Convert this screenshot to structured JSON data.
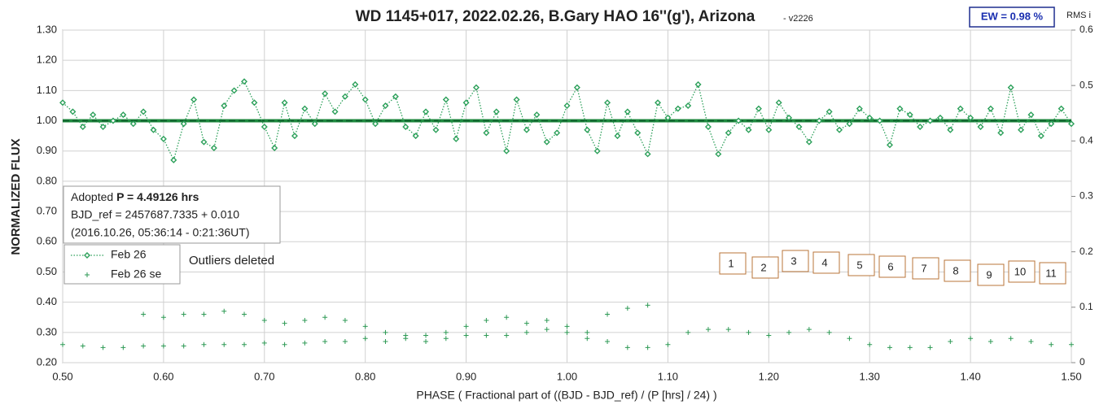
{
  "chart_data": {
    "type": "scatter",
    "title": "WD 1145+017, 2022.02.26, B.Gary HAO 16''(g'), Arizona",
    "subtitle": "- v2226",
    "x_label": "PHASE ( Fractional part of ((BJD - BJD_ref) / (P [hrs] / 24) )",
    "y_label": "NORMALIZED FLUX",
    "y2_label": "RMS i",
    "ew_label": "EW = 0.98 %",
    "info": {
      "prefix": "Adopted ",
      "period": "P = 4.49126 hrs",
      "line2": "BJD_ref = 2457687.7335 + 0.010",
      "line3": "(2016.10.26, 05:36:14 - 0:21:36UT)"
    },
    "note": "Outliers deleted",
    "markers": [
      "1",
      "2",
      "3",
      "4",
      "5",
      "6",
      "7",
      "8",
      "9",
      "10",
      "11"
    ],
    "reference_line": 1.0,
    "xlim": [
      0.5,
      1.5
    ],
    "ylim": [
      0.2,
      1.3
    ],
    "y2lim": [
      0,
      0.6
    ],
    "grid": true,
    "xticks": [
      {
        "value": 0.5,
        "label": "0.50"
      },
      {
        "value": 0.6,
        "label": "0.60"
      },
      {
        "value": 0.7,
        "label": "0.70"
      },
      {
        "value": 0.8,
        "label": "0.80"
      },
      {
        "value": 0.9,
        "label": "0.90"
      },
      {
        "value": 1.0,
        "label": "1.00"
      },
      {
        "value": 1.1,
        "label": "1.10"
      },
      {
        "value": 1.2,
        "label": "1.20"
      },
      {
        "value": 1.3,
        "label": "1.30"
      },
      {
        "value": 1.4,
        "label": "1.40"
      },
      {
        "value": 1.5,
        "label": "1.50"
      }
    ],
    "yticks": [
      {
        "value": 0.2,
        "label": "0.20"
      },
      {
        "value": 0.3,
        "label": "0.30"
      },
      {
        "value": 0.4,
        "label": "0.40"
      },
      {
        "value": 0.5,
        "label": "0.50"
      },
      {
        "value": 0.6,
        "label": "0.60"
      },
      {
        "value": 0.7,
        "label": "0.70"
      },
      {
        "value": 0.8,
        "label": "0.80"
      },
      {
        "value": 0.9,
        "label": "0.90"
      },
      {
        "value": 1.0,
        "label": "1.00"
      },
      {
        "value": 1.1,
        "label": "1.10"
      },
      {
        "value": 1.2,
        "label": "1.20"
      },
      {
        "value": 1.3,
        "label": "1.30"
      }
    ],
    "y2ticks": [
      0,
      0.1,
      0.2,
      0.3,
      0.4,
      0.5,
      0.6
    ],
    "series": [
      {
        "name": "Feb 26",
        "color": "#2ca05a",
        "x": [
          0.5,
          0.51,
          0.52,
          0.53,
          0.54,
          0.55,
          0.56,
          0.57,
          0.58,
          0.59,
          0.6,
          0.61,
          0.62,
          0.63,
          0.64,
          0.65,
          0.66,
          0.67,
          0.68,
          0.69,
          0.7,
          0.71,
          0.72,
          0.73,
          0.74,
          0.75,
          0.76,
          0.77,
          0.78,
          0.79,
          0.8,
          0.81,
          0.82,
          0.83,
          0.84,
          0.85,
          0.86,
          0.87,
          0.88,
          0.89,
          0.9,
          0.91,
          0.92,
          0.93,
          0.94,
          0.95,
          0.96,
          0.97,
          0.98,
          0.99,
          1.0,
          1.01,
          1.02,
          1.03,
          1.04,
          1.05,
          1.06,
          1.07,
          1.08,
          1.09,
          1.1,
          1.11,
          1.12,
          1.13,
          1.14,
          1.15,
          1.16,
          1.17,
          1.18,
          1.19,
          1.2,
          1.21,
          1.22,
          1.23,
          1.24,
          1.25,
          1.26,
          1.27,
          1.28,
          1.29,
          1.3,
          1.31,
          1.32,
          1.33,
          1.34,
          1.35,
          1.36,
          1.37,
          1.38,
          1.39,
          1.4,
          1.41,
          1.42,
          1.43,
          1.44,
          1.45,
          1.46,
          1.47,
          1.48,
          1.49,
          1.5
        ],
        "values": [
          1.06,
          1.03,
          0.98,
          1.02,
          0.98,
          1.0,
          1.02,
          0.99,
          1.03,
          0.97,
          0.94,
          0.87,
          0.99,
          1.07,
          0.93,
          0.91,
          1.05,
          1.1,
          1.13,
          1.06,
          0.98,
          0.91,
          1.06,
          0.95,
          1.04,
          0.99,
          1.09,
          1.03,
          1.08,
          1.12,
          1.07,
          0.99,
          1.05,
          1.08,
          0.98,
          0.95,
          1.03,
          0.97,
          1.07,
          0.94,
          1.06,
          1.11,
          0.96,
          1.03,
          0.9,
          1.07,
          0.97,
          1.02,
          0.93,
          0.96,
          1.05,
          1.11,
          0.97,
          0.9,
          1.06,
          0.95,
          1.03,
          0.96,
          0.89,
          1.06,
          1.01,
          1.04,
          1.05,
          1.12,
          0.98,
          0.89,
          0.96,
          1.0,
          0.97,
          1.04,
          0.97,
          1.06,
          1.01,
          0.98,
          0.93,
          1.0,
          1.03,
          0.97,
          0.99,
          1.04,
          1.01,
          1.0,
          0.92,
          1.04,
          1.02,
          0.98,
          1.0,
          1.01,
          0.97,
          1.04,
          1.01,
          0.98,
          1.04,
          0.96,
          1.11,
          0.97,
          1.02,
          0.95,
          0.99,
          1.04,
          0.99
        ]
      },
      {
        "name": "Feb 26 se",
        "color": "#2e9a55",
        "x": [
          0.5,
          0.52,
          0.54,
          0.56,
          0.58,
          0.6,
          0.62,
          0.64,
          0.66,
          0.68,
          0.7,
          0.72,
          0.74,
          0.76,
          0.78,
          0.8,
          0.82,
          0.84,
          0.86,
          0.88,
          0.9,
          0.92,
          0.94,
          0.96,
          0.98,
          1.0,
          1.02,
          1.04,
          1.06,
          1.08,
          1.1,
          1.12,
          1.14,
          1.16,
          1.18,
          1.2,
          1.22,
          1.24,
          1.26,
          1.28,
          1.3,
          1.32,
          1.34,
          1.36,
          1.38,
          1.4,
          1.42,
          1.44,
          1.46,
          1.48,
          1.5,
          0.58,
          0.6,
          0.62,
          0.64,
          0.66,
          0.68,
          0.7,
          0.72,
          0.74,
          0.76,
          0.78,
          0.8,
          0.82,
          0.84,
          0.86,
          0.88,
          0.9,
          0.92,
          0.94,
          0.96,
          0.98,
          1.0,
          1.02,
          1.04,
          1.06,
          1.08
        ],
        "values": [
          0.26,
          0.255,
          0.25,
          0.25,
          0.255,
          0.255,
          0.255,
          0.26,
          0.26,
          0.26,
          0.265,
          0.26,
          0.265,
          0.27,
          0.27,
          0.28,
          0.27,
          0.28,
          0.27,
          0.28,
          0.29,
          0.29,
          0.29,
          0.3,
          0.31,
          0.3,
          0.28,
          0.27,
          0.25,
          0.25,
          0.26,
          0.3,
          0.31,
          0.31,
          0.3,
          0.29,
          0.3,
          0.31,
          0.3,
          0.28,
          0.26,
          0.25,
          0.25,
          0.25,
          0.27,
          0.28,
          0.27,
          0.28,
          0.27,
          0.26,
          0.26,
          0.36,
          0.35,
          0.36,
          0.36,
          0.37,
          0.36,
          0.34,
          0.33,
          0.34,
          0.35,
          0.34,
          0.32,
          0.3,
          0.29,
          0.29,
          0.3,
          0.32,
          0.34,
          0.35,
          0.33,
          0.34,
          0.32,
          0.3,
          0.36,
          0.38,
          0.39
        ]
      }
    ]
  }
}
